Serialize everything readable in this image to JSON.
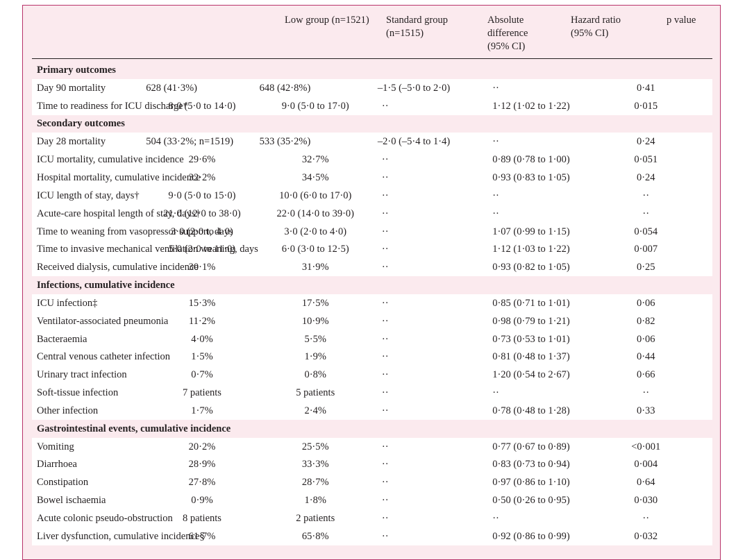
{
  "columns": {
    "low": "Low group (n=1521)",
    "standard": "Standard group\n(n=1515)",
    "absolute": "Absolute\ndifference\n(95% CI)",
    "hazard": "Hazard ratio\n(95% CI)",
    "pvalue": "p value"
  },
  "rows": [
    {
      "type": "section",
      "label": "Primary outcomes"
    },
    {
      "type": "data",
      "label": "Day 90 mortality",
      "low": "628 (41·3%)",
      "standard": "648 (42·8%)",
      "absolute": "–1·5 (–5·0 to 2·0)",
      "hazard": "··",
      "p": "0·41",
      "align": "left"
    },
    {
      "type": "data",
      "label": "Time to readiness for ICU discharge*",
      "low": "8·0 (5·0 to 14·0)",
      "standard": "9·0 (5·0 to 17·0)",
      "absolute": "··",
      "hazard": "1·12 (1·02 to 1·22)",
      "p": "0·015",
      "align": "center"
    },
    {
      "type": "section",
      "label": "Secondary outcomes"
    },
    {
      "type": "data",
      "label": "Day 28 mortality",
      "low": "504 (33·2%; n=1519)",
      "standard": "533 (35·2%)",
      "absolute": "–2·0 (–5·4 to 1·4)",
      "hazard": "··",
      "p": "0·24",
      "align": "left"
    },
    {
      "type": "data",
      "label": "ICU mortality, cumulative incidence",
      "low": "29·6%",
      "standard": "32·7%",
      "absolute": "··",
      "hazard": "0·89 (0·78 to 1·00)",
      "p": "0·051",
      "align": "center"
    },
    {
      "type": "data",
      "label": "Hospital mortality, cumulative incidence",
      "low": "32·2%",
      "standard": "34·5%",
      "absolute": "··",
      "hazard": "0·93 (0·83 to 1·05)",
      "p": "0·24",
      "align": "center"
    },
    {
      "type": "data",
      "label": "ICU length of stay, days†",
      "low": "9·0 (5·0 to 15·0)",
      "standard": "10·0 (6·0 to 17·0)",
      "absolute": "··",
      "hazard": "··",
      "p": "··",
      "align": "center"
    },
    {
      "type": "data",
      "label": "Acute-care hospital length of stay, days†",
      "low": "21·0 (12·0 to 38·0)",
      "standard": "22·0 (14·0 to 39·0)",
      "absolute": "··",
      "hazard": "··",
      "p": "··",
      "align": "center"
    },
    {
      "type": "data",
      "label": "Time to weaning from vasopressor support, days",
      "low": "3·0 (2·0 to 4·0)",
      "standard": "3·0 (2·0 to 4·0)",
      "absolute": "··",
      "hazard": "1·07 (0·99 to 1·15)",
      "p": "0·054",
      "align": "center"
    },
    {
      "type": "data",
      "label": "Time to invasive mechanical ventilation weaning, days",
      "low": "5·0 (2·0 to 11·0)",
      "standard": "6·0 (3·0 to 12·5)",
      "absolute": "··",
      "hazard": "1·12 (1·03 to 1·22)",
      "p": "0·007",
      "align": "center"
    },
    {
      "type": "data",
      "label": "Received dialysis, cumulative incidence",
      "low": "30·1%",
      "standard": "31·9%",
      "absolute": "··",
      "hazard": "0·93 (0·82 to 1·05)",
      "p": "0·25",
      "align": "center"
    },
    {
      "type": "section",
      "label": "Infections, cumulative incidence"
    },
    {
      "type": "data",
      "label": "ICU infection‡",
      "low": "15·3%",
      "standard": "17·5%",
      "absolute": "··",
      "hazard": "0·85 (0·71 to 1·01)",
      "p": "0·06",
      "align": "center"
    },
    {
      "type": "data",
      "label": "Ventilator-associated pneumonia",
      "low": "11·2%",
      "standard": "10·9%",
      "absolute": "··",
      "hazard": "0·98 (0·79 to 1·21)",
      "p": "0·82",
      "align": "center"
    },
    {
      "type": "data",
      "label": "Bacteraemia",
      "low": "4·0%",
      "standard": "5·5%",
      "absolute": "··",
      "hazard": "0·73 (0·53 to 1·01)",
      "p": "0·06",
      "align": "center"
    },
    {
      "type": "data",
      "label": "Central venous catheter infection",
      "low": "1·5%",
      "standard": "1·9%",
      "absolute": "··",
      "hazard": "0·81 (0·48 to 1·37)",
      "p": "0·44",
      "align": "center"
    },
    {
      "type": "data",
      "label": "Urinary tract infection",
      "low": "0·7%",
      "standard": "0·8%",
      "absolute": "··",
      "hazard": "1·20 (0·54 to 2·67)",
      "p": "0·66",
      "align": "center"
    },
    {
      "type": "data",
      "label": "Soft-tissue infection",
      "low": "7 patients",
      "standard": "5 patients",
      "absolute": "··",
      "hazard": "··",
      "p": "··",
      "align": "center"
    },
    {
      "type": "data",
      "label": "Other infection",
      "low": "1·7%",
      "standard": "2·4%",
      "absolute": "··",
      "hazard": "0·78 (0·48 to 1·28)",
      "p": "0·33",
      "align": "center"
    },
    {
      "type": "section",
      "label": "Gastrointestinal events, cumulative incidence"
    },
    {
      "type": "data",
      "label": "Vomiting",
      "low": "20·2%",
      "standard": "25·5%",
      "absolute": "··",
      "hazard": "0·77 (0·67 to 0·89)",
      "p": "<0·001",
      "align": "center"
    },
    {
      "type": "data",
      "label": "Diarrhoea",
      "low": "28·9%",
      "standard": "33·3%",
      "absolute": "··",
      "hazard": "0·83 (0·73 to 0·94)",
      "p": "0·004",
      "align": "center"
    },
    {
      "type": "data",
      "label": "Constipation",
      "low": "27·8%",
      "standard": "28·7%",
      "absolute": "··",
      "hazard": "0·97 (0·86 to 1·10)",
      "p": "0·64",
      "align": "center"
    },
    {
      "type": "data",
      "label": "Bowel ischaemia",
      "low": "0·9%",
      "standard": "1·8%",
      "absolute": "··",
      "hazard": "0·50 (0·26 to 0·95)",
      "p": "0·030",
      "align": "center"
    },
    {
      "type": "data",
      "label": "Acute colonic pseudo-obstruction",
      "low": "8 patients",
      "standard": "2 patients",
      "absolute": "··",
      "hazard": "··",
      "p": "··",
      "align": "center"
    },
    {
      "type": "data",
      "label": "Liver dysfunction, cumulative incidence§",
      "low": "61·7%",
      "standard": "65·8%",
      "absolute": "··",
      "hazard": "0·92 (0·86 to 0·99)",
      "p": "0·032",
      "align": "center"
    }
  ]
}
